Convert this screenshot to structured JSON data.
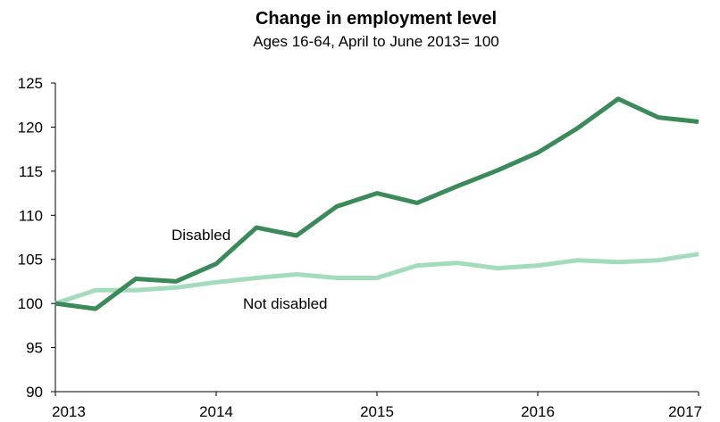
{
  "chart_data": {
    "type": "line",
    "title": "Change in employment level",
    "subtitle": "Ages 16-64, April to June 2013= 100",
    "xlabel": "",
    "ylabel": "",
    "xlim": [
      2013,
      2017
    ],
    "ylim": [
      90,
      125
    ],
    "x_ticks": [
      2013,
      2014,
      2015,
      2016,
      2017
    ],
    "x_tick_labels": [
      "2013",
      "2014",
      "2015",
      "2016",
      "2017"
    ],
    "y_ticks": [
      90,
      95,
      100,
      105,
      110,
      115,
      120,
      125
    ],
    "y_tick_labels": [
      "90",
      "95",
      "100",
      "105",
      "110",
      "115",
      "120",
      "125"
    ],
    "grid": false,
    "legend": "none (series labelled directly on chart)",
    "x": [
      2013,
      2013.25,
      2013.5,
      2013.75,
      2014,
      2014.25,
      2014.5,
      2014.75,
      2015,
      2015.25,
      2015.5,
      2015.75,
      2016,
      2016.25,
      2016.5,
      2016.75,
      2017
    ],
    "series": [
      {
        "name": "Disabled",
        "color": "#3a8a5a",
        "values": [
          100,
          99.4,
          102.8,
          102.5,
          104.5,
          108.6,
          107.7,
          111.0,
          112.5,
          111.4,
          113.3,
          115.1,
          117.1,
          119.9,
          123.2,
          121.1,
          120.6
        ]
      },
      {
        "name": "Not disabled",
        "color": "#a3dcbd",
        "values": [
          100,
          101.5,
          101.5,
          101.8,
          102.4,
          102.9,
          103.3,
          102.9,
          102.9,
          104.3,
          104.6,
          104.0,
          104.3,
          104.9,
          104.7,
          104.9,
          105.6
        ]
      }
    ]
  }
}
